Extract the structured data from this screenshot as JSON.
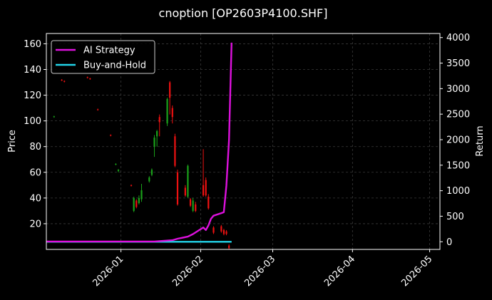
{
  "chart_data": {
    "type": "line",
    "subtype": "candlestick with dual-axis return lines",
    "title": "cnoption [OP2603P4100.SHF]",
    "left_axis": {
      "label": "Price",
      "ylim": [
        0,
        168
      ],
      "ticks": [
        20,
        40,
        60,
        80,
        100,
        120,
        140,
        160
      ]
    },
    "right_axis": {
      "label": "Return",
      "ylim": [
        -150,
        4080
      ],
      "ticks": [
        0,
        500,
        1000,
        1500,
        2000,
        2500,
        3000,
        3500,
        4000
      ]
    },
    "x_axis": {
      "label": "",
      "range": [
        "2025-12-03",
        "2026-05-05"
      ],
      "ticks": [
        "2026-01-01",
        "2026-02-01",
        "2026-03-01",
        "2026-04-01",
        "2026-05-01"
      ],
      "tick_labels": [
        "2026-01",
        "2026-02",
        "2026-03",
        "2026-04",
        "2026-05"
      ],
      "tick_rotation": 45
    },
    "grid": true,
    "legend": {
      "placement": "top-left",
      "entries": [
        {
          "name": "AI Strategy",
          "color": "#dd11dd"
        },
        {
          "name": "Buy-and-Hold",
          "color": "#22d3e8"
        }
      ]
    },
    "colors": {
      "up": "#1aa11a",
      "down": "#ee1111",
      "background": "#000000",
      "grid": "#3a3a3a"
    },
    "candles": [
      {
        "date": "2025-12-06",
        "open": 103,
        "close": 103.5,
        "high": 104,
        "low": 102.5
      },
      {
        "date": "2025-12-09",
        "open": 132,
        "close": 131.5,
        "high": 132.5,
        "low": 131
      },
      {
        "date": "2025-12-10",
        "open": 131,
        "close": 130.5,
        "high": 131.5,
        "low": 130
      },
      {
        "date": "2025-12-19",
        "open": 134,
        "close": 133.5,
        "high": 134.5,
        "low": 133
      },
      {
        "date": "2025-12-20",
        "open": 133,
        "close": 132.5,
        "high": 133.5,
        "low": 132
      },
      {
        "date": "2025-12-23",
        "open": 109,
        "close": 108.5,
        "high": 109.5,
        "low": 108
      },
      {
        "date": "2025-12-28",
        "open": 89,
        "close": 88.5,
        "high": 89.5,
        "low": 88
      },
      {
        "date": "2025-12-30",
        "open": 66,
        "close": 66.5,
        "high": 67,
        "low": 65.5
      },
      {
        "date": "2025-12-31",
        "open": 61,
        "close": 62,
        "high": 62.5,
        "low": 60
      },
      {
        "date": "2026-01-05",
        "open": 50,
        "close": 49.5,
        "high": 50.5,
        "low": 49
      },
      {
        "date": "2026-01-06",
        "open": 30,
        "close": 40,
        "high": 41,
        "low": 29
      },
      {
        "date": "2026-01-07",
        "open": 38,
        "close": 33,
        "high": 39,
        "low": 32
      },
      {
        "date": "2026-01-08",
        "open": 36,
        "close": 40,
        "high": 42,
        "low": 35
      },
      {
        "date": "2026-01-09",
        "open": 39,
        "close": 46,
        "high": 51,
        "low": 37
      },
      {
        "date": "2026-01-12",
        "open": 53,
        "close": 56,
        "high": 57,
        "low": 52
      },
      {
        "date": "2026-01-13",
        "open": 58,
        "close": 62,
        "high": 63,
        "low": 57
      },
      {
        "date": "2026-01-14",
        "open": 80,
        "close": 87,
        "high": 89,
        "low": 72
      },
      {
        "date": "2026-01-15",
        "open": 88,
        "close": 92,
        "high": 93,
        "low": 80
      },
      {
        "date": "2026-01-16",
        "open": 103,
        "close": 99,
        "high": 105,
        "low": 88
      },
      {
        "date": "2026-01-19",
        "open": 98,
        "close": 117,
        "high": 118,
        "low": 96
      },
      {
        "date": "2026-01-20",
        "open": 130,
        "close": 118,
        "high": 131,
        "low": 105
      },
      {
        "date": "2026-01-21",
        "open": 110,
        "close": 103,
        "high": 112,
        "low": 98
      },
      {
        "date": "2026-01-22",
        "open": 88,
        "close": 65,
        "high": 90,
        "low": 64
      },
      {
        "date": "2026-01-23",
        "open": 60,
        "close": 35,
        "high": 62,
        "low": 34
      },
      {
        "date": "2026-01-26",
        "open": 48,
        "close": 42,
        "high": 50,
        "low": 41
      },
      {
        "date": "2026-01-27",
        "open": 41,
        "close": 65,
        "high": 66,
        "low": 40
      },
      {
        "date": "2026-01-28",
        "open": 39,
        "close": 34,
        "high": 40,
        "low": 33
      },
      {
        "date": "2026-01-29",
        "open": 30,
        "close": 38,
        "high": 40,
        "low": 29
      },
      {
        "date": "2026-01-30",
        "open": 35,
        "close": 30,
        "high": 37,
        "low": 29
      },
      {
        "date": "2026-02-02",
        "open": 50,
        "close": 42,
        "high": 78,
        "low": 41
      },
      {
        "date": "2026-02-03",
        "open": 54,
        "close": 42,
        "high": 56,
        "low": 41
      },
      {
        "date": "2026-02-04",
        "open": 41,
        "close": 32,
        "high": 43,
        "low": 31
      },
      {
        "date": "2026-02-06",
        "open": 17,
        "close": 13,
        "high": 18,
        "low": 12
      },
      {
        "date": "2026-02-09",
        "open": 18,
        "close": 14,
        "high": 19,
        "low": 13
      },
      {
        "date": "2026-02-10",
        "open": 15,
        "close": 12,
        "high": 16,
        "low": 11
      },
      {
        "date": "2026-02-11",
        "open": 14,
        "close": 12,
        "high": 15,
        "low": 11
      },
      {
        "date": "2026-02-12",
        "open": 3,
        "close": 1,
        "high": 4,
        "low": 0
      }
    ],
    "series": [
      {
        "name": "AI Strategy",
        "axis": "right",
        "color": "#dd11dd",
        "x": [
          "2025-12-03",
          "2026-01-14",
          "2026-01-21",
          "2026-01-23",
          "2026-01-27",
          "2026-01-29",
          "2026-02-02",
          "2026-02-03",
          "2026-02-04",
          "2026-02-05",
          "2026-02-06",
          "2026-02-09",
          "2026-02-10",
          "2026-02-11",
          "2026-02-12",
          "2026-02-13"
        ],
        "values": [
          5,
          5,
          30,
          60,
          100,
          150,
          280,
          230,
          320,
          450,
          510,
          560,
          580,
          1100,
          2000,
          3900
        ]
      },
      {
        "name": "Buy-and-Hold",
        "axis": "right",
        "color": "#22d3e8",
        "x": [
          "2025-12-03",
          "2026-02-13"
        ],
        "values": [
          0,
          0
        ]
      }
    ]
  }
}
